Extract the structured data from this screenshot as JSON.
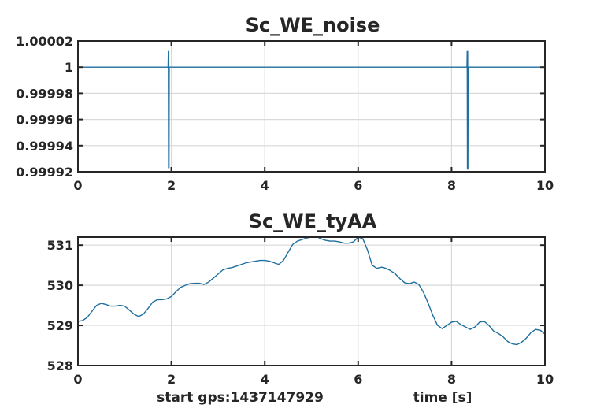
{
  "chart_data": [
    {
      "type": "line",
      "title": "Sc_WE_noise",
      "xlabel": "",
      "ylabel": "",
      "xlim": [
        0,
        10
      ],
      "ylim": [
        0.99992,
        1.00002
      ],
      "grid": true,
      "x_ticks": [
        0,
        2,
        4,
        6,
        8,
        10
      ],
      "x_tick_labels": [
        "0",
        "2",
        "4",
        "6",
        "8",
        "10"
      ],
      "y_ticks": [
        1.00002,
        1.0,
        0.99998,
        0.99996,
        0.99994,
        0.99992
      ],
      "y_tick_labels": [
        "1.00002",
        "1",
        "0.99998",
        "0.99996",
        "0.99994",
        "0.99992"
      ],
      "series": [
        {
          "color": "#1f6f9f",
          "x": [
            0,
            1.93,
            1.935,
            1.94,
            1.945,
            1.95,
            1.955,
            1.96,
            8.33,
            8.335,
            8.34,
            8.345,
            8.35,
            8.355,
            10
          ],
          "y": [
            1.0,
            1.0,
            1.000012,
            0.999923,
            1.000012,
            0.999923,
            1.0,
            1.0,
            1.0,
            1.000012,
            0.999922,
            1.000012,
            0.999922,
            1.0,
            1.0
          ]
        }
      ]
    },
    {
      "type": "line",
      "title": "Sc_WE_tyAA",
      "xlabel": "time [s]",
      "ylabel": "",
      "xlim": [
        0,
        10
      ],
      "ylim": [
        528,
        531.2
      ],
      "grid": true,
      "x_ticks": [
        0,
        2,
        4,
        6,
        8,
        10
      ],
      "x_tick_labels": [
        "0",
        "2",
        "4",
        "6",
        "8",
        "10"
      ],
      "y_ticks": [
        531,
        530,
        529,
        528
      ],
      "y_tick_labels": [
        "531",
        "530",
        "529",
        "528"
      ],
      "annotation": "start gps:1437147929",
      "series": [
        {
          "color": "#1f6f9f",
          "x": [
            0,
            0.1,
            0.2,
            0.3,
            0.4,
            0.5,
            0.6,
            0.7,
            0.8,
            0.9,
            1.0,
            1.1,
            1.2,
            1.3,
            1.4,
            1.5,
            1.6,
            1.7,
            1.8,
            1.9,
            2.0,
            2.1,
            2.2,
            2.3,
            2.4,
            2.5,
            2.6,
            2.7,
            2.8,
            2.9,
            3.0,
            3.1,
            3.2,
            3.3,
            3.4,
            3.5,
            3.6,
            3.7,
            3.8,
            3.9,
            4.0,
            4.1,
            4.2,
            4.3,
            4.4,
            4.5,
            4.6,
            4.7,
            4.8,
            4.9,
            5.0,
            5.1,
            5.2,
            5.3,
            5.4,
            5.5,
            5.6,
            5.7,
            5.8,
            5.9,
            6.0,
            6.1,
            6.2,
            6.3,
            6.4,
            6.5,
            6.6,
            6.7,
            6.8,
            6.9,
            7.0,
            7.1,
            7.2,
            7.3,
            7.4,
            7.5,
            7.6,
            7.7,
            7.8,
            7.9,
            8.0,
            8.1,
            8.2,
            8.3,
            8.4,
            8.5,
            8.6,
            8.7,
            8.8,
            8.9,
            9.0,
            9.1,
            9.2,
            9.3,
            9.4,
            9.5,
            9.6,
            9.7,
            9.8,
            9.9,
            10.0
          ],
          "y": [
            529.1,
            529.12,
            529.2,
            529.35,
            529.5,
            529.55,
            529.52,
            529.48,
            529.48,
            529.5,
            529.48,
            529.38,
            529.28,
            529.22,
            529.28,
            529.42,
            529.58,
            529.64,
            529.64,
            529.66,
            529.72,
            529.84,
            529.95,
            530.0,
            530.04,
            530.05,
            530.05,
            530.02,
            530.08,
            530.18,
            530.28,
            530.38,
            530.42,
            530.44,
            530.48,
            530.52,
            530.56,
            530.58,
            530.6,
            530.62,
            530.62,
            530.6,
            530.56,
            530.52,
            530.62,
            530.82,
            531.02,
            531.1,
            531.14,
            531.18,
            531.2,
            531.22,
            531.16,
            531.12,
            531.1,
            531.1,
            531.08,
            531.05,
            531.05,
            531.08,
            531.2,
            531.16,
            530.88,
            530.5,
            530.42,
            530.45,
            530.42,
            530.36,
            530.28,
            530.16,
            530.06,
            530.04,
            530.08,
            530.02,
            529.82,
            529.55,
            529.25,
            529.0,
            528.92,
            529.0,
            529.08,
            529.1,
            529.02,
            528.96,
            528.9,
            528.96,
            529.08,
            529.1,
            529.0,
            528.86,
            528.8,
            528.72,
            528.6,
            528.54,
            528.52,
            528.58,
            528.68,
            528.82,
            528.9,
            528.88,
            528.78
          ]
        }
      ]
    }
  ]
}
